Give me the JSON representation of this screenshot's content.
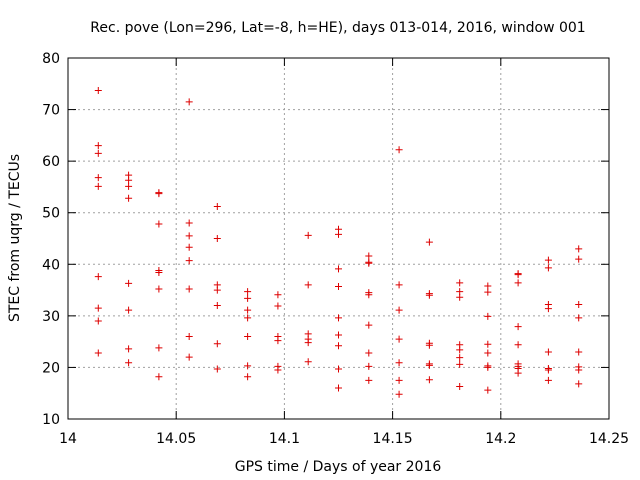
{
  "chart_data": {
    "type": "scatter",
    "title": "Rec. pove (Lon=296, Lat=-8, h=HE), days 013-014, 2016, window 001",
    "xlabel": "GPS time / Days of year 2016",
    "ylabel": "STEC from uqrg / TECUs",
    "xlim": [
      14,
      14.25
    ],
    "ylim": [
      10,
      80
    ],
    "x_ticks": [
      "14",
      "14.05",
      "14.1",
      "14.15",
      "14.2",
      "14.25"
    ],
    "y_ticks": [
      "10",
      "20",
      "30",
      "40",
      "50",
      "60",
      "70",
      "80"
    ],
    "grid": true,
    "marker": "+",
    "color": "#dd0000",
    "series": [
      {
        "points": [
          [
            14.014,
            73.7
          ],
          [
            14.014,
            63.0
          ],
          [
            14.014,
            61.5
          ],
          [
            14.014,
            56.8
          ],
          [
            14.014,
            55.1
          ],
          [
            14.014,
            37.6
          ],
          [
            14.014,
            31.5
          ],
          [
            14.014,
            29.0
          ],
          [
            14.014,
            22.8
          ],
          [
            14.028,
            57.3
          ],
          [
            14.028,
            56.3
          ],
          [
            14.028,
            55.1
          ],
          [
            14.028,
            52.8
          ],
          [
            14.028,
            36.3
          ],
          [
            14.028,
            31.1
          ],
          [
            14.028,
            23.6
          ],
          [
            14.028,
            20.9
          ],
          [
            14.042,
            53.9
          ],
          [
            14.042,
            53.7
          ],
          [
            14.042,
            47.8
          ],
          [
            14.042,
            38.8
          ],
          [
            14.042,
            38.4
          ],
          [
            14.042,
            35.2
          ],
          [
            14.042,
            23.8
          ],
          [
            14.042,
            18.2
          ],
          [
            14.056,
            71.5
          ],
          [
            14.056,
            48.0
          ],
          [
            14.056,
            45.5
          ],
          [
            14.056,
            43.3
          ],
          [
            14.056,
            40.7
          ],
          [
            14.056,
            35.2
          ],
          [
            14.056,
            26.0
          ],
          [
            14.056,
            22.0
          ],
          [
            14.069,
            51.2
          ],
          [
            14.069,
            45.0
          ],
          [
            14.069,
            36.0
          ],
          [
            14.069,
            35.0
          ],
          [
            14.069,
            32.0
          ],
          [
            14.069,
            24.6
          ],
          [
            14.069,
            19.7
          ],
          [
            14.083,
            34.7
          ],
          [
            14.083,
            33.4
          ],
          [
            14.083,
            31.1
          ],
          [
            14.083,
            29.6
          ],
          [
            14.083,
            26.0
          ],
          [
            14.083,
            20.3
          ],
          [
            14.083,
            18.2
          ],
          [
            14.097,
            34.1
          ],
          [
            14.097,
            31.9
          ],
          [
            14.097,
            26.0
          ],
          [
            14.097,
            25.2
          ],
          [
            14.097,
            20.2
          ],
          [
            14.097,
            19.5
          ],
          [
            14.111,
            45.6
          ],
          [
            14.111,
            36.0
          ],
          [
            14.111,
            26.5
          ],
          [
            14.111,
            25.5
          ],
          [
            14.111,
            24.8
          ],
          [
            14.111,
            21.1
          ],
          [
            14.125,
            46.8
          ],
          [
            14.125,
            45.8
          ],
          [
            14.125,
            39.1
          ],
          [
            14.125,
            35.7
          ],
          [
            14.125,
            29.6
          ],
          [
            14.125,
            26.3
          ],
          [
            14.125,
            24.2
          ],
          [
            14.125,
            19.7
          ],
          [
            14.125,
            16.0
          ],
          [
            14.139,
            41.6
          ],
          [
            14.139,
            40.4
          ],
          [
            14.139,
            40.2
          ],
          [
            14.139,
            34.5
          ],
          [
            14.139,
            34.1
          ],
          [
            14.139,
            28.2
          ],
          [
            14.139,
            22.8
          ],
          [
            14.139,
            20.2
          ],
          [
            14.139,
            17.5
          ],
          [
            14.153,
            62.2
          ],
          [
            14.153,
            36.0
          ],
          [
            14.153,
            31.1
          ],
          [
            14.153,
            25.5
          ],
          [
            14.153,
            20.9
          ],
          [
            14.153,
            17.5
          ],
          [
            14.153,
            14.8
          ],
          [
            14.167,
            44.3
          ],
          [
            14.167,
            34.3
          ],
          [
            14.167,
            34.0
          ],
          [
            14.167,
            24.7
          ],
          [
            14.167,
            24.3
          ],
          [
            14.167,
            20.7
          ],
          [
            14.167,
            20.4
          ],
          [
            14.167,
            17.6
          ],
          [
            14.181,
            36.4
          ],
          [
            14.181,
            34.7
          ],
          [
            14.181,
            33.6
          ],
          [
            14.181,
            24.4
          ],
          [
            14.181,
            23.4
          ],
          [
            14.181,
            21.9
          ],
          [
            14.181,
            20.6
          ],
          [
            14.181,
            16.3
          ],
          [
            14.194,
            35.8
          ],
          [
            14.194,
            34.6
          ],
          [
            14.194,
            29.9
          ],
          [
            14.194,
            24.5
          ],
          [
            14.194,
            22.8
          ],
          [
            14.194,
            20.3
          ],
          [
            14.194,
            20.0
          ],
          [
            14.194,
            15.6
          ],
          [
            14.208,
            38.2
          ],
          [
            14.208,
            38.0
          ],
          [
            14.208,
            36.4
          ],
          [
            14.208,
            27.9
          ],
          [
            14.208,
            24.4
          ],
          [
            14.208,
            20.7
          ],
          [
            14.208,
            20.2
          ],
          [
            14.208,
            19.8
          ],
          [
            14.208,
            18.9
          ],
          [
            14.222,
            40.8
          ],
          [
            14.222,
            39.3
          ],
          [
            14.222,
            32.2
          ],
          [
            14.222,
            31.4
          ],
          [
            14.222,
            23.0
          ],
          [
            14.222,
            19.8
          ],
          [
            14.222,
            19.5
          ],
          [
            14.222,
            17.5
          ],
          [
            14.236,
            43.0
          ],
          [
            14.236,
            41.0
          ],
          [
            14.236,
            32.2
          ],
          [
            14.236,
            29.6
          ],
          [
            14.236,
            23.0
          ],
          [
            14.236,
            20.1
          ],
          [
            14.236,
            19.5
          ],
          [
            14.236,
            16.8
          ]
        ]
      }
    ]
  }
}
